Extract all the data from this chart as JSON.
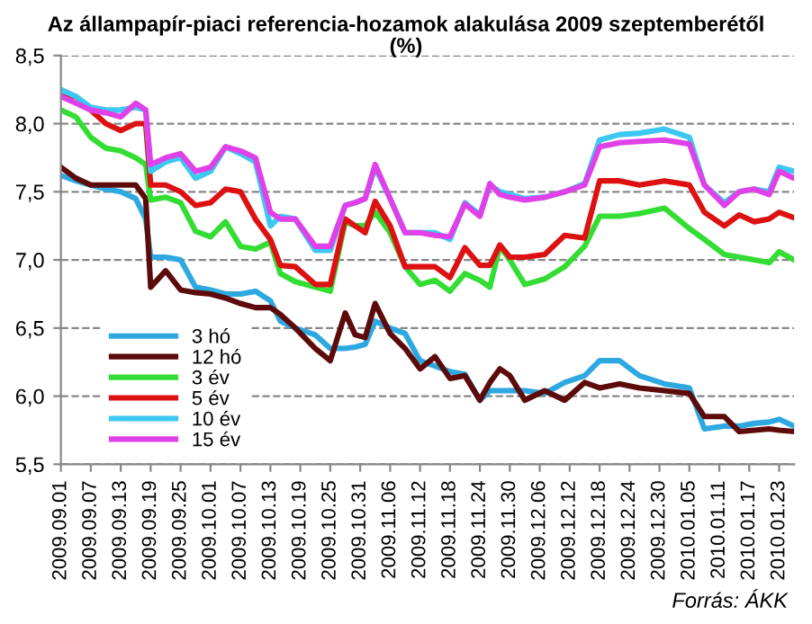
{
  "chart_data": {
    "type": "line",
    "title": "Az állampapír-piaci referencia-hozamok alakulása 2009 szeptemberétől",
    "subtitle": "(%)",
    "annotations": [
      "Forrás: ÁKK"
    ],
    "x": [
      "2009-09-01",
      "2009-09-04",
      "2009-09-07",
      "2009-09-10",
      "2009-09-13",
      "2009-09-16",
      "2009-09-18",
      "2009-09-19",
      "2009-09-22",
      "2009-09-25",
      "2009-09-28",
      "2009-10-01",
      "2009-10-04",
      "2009-10-07",
      "2009-10-10",
      "2009-10-13",
      "2009-10-15",
      "2009-10-18",
      "2009-10-22",
      "2009-10-25",
      "2009-10-28",
      "2009-10-30",
      "2009-11-01",
      "2009-11-03",
      "2009-11-06",
      "2009-11-09",
      "2009-11-12",
      "2009-11-15",
      "2009-11-18",
      "2009-11-21",
      "2009-11-24",
      "2009-11-26",
      "2009-11-28",
      "2009-11-30",
      "2009-12-03",
      "2009-12-07",
      "2009-12-11",
      "2009-12-15",
      "2009-12-18",
      "2009-12-22",
      "2009-12-26",
      "2009-12-31",
      "2010-01-05",
      "2010-01-08",
      "2010-01-12",
      "2010-01-15",
      "2010-01-18",
      "2010-01-21",
      "2010-01-23",
      "2010-01-26"
    ],
    "series": [
      {
        "name": "3 hó",
        "color": "#2ea8e0",
        "values": [
          7.62,
          7.58,
          7.55,
          7.52,
          7.5,
          7.45,
          7.3,
          7.02,
          7.02,
          7.0,
          6.8,
          6.78,
          6.75,
          6.75,
          6.77,
          6.7,
          6.55,
          6.5,
          6.45,
          6.35,
          6.35,
          6.36,
          6.38,
          6.55,
          6.5,
          6.46,
          6.26,
          6.22,
          6.18,
          6.16,
          5.97,
          6.04,
          6.04,
          6.04,
          6.04,
          6.02,
          6.1,
          6.15,
          6.26,
          6.26,
          6.15,
          6.09,
          6.06,
          5.76,
          5.78,
          5.78,
          5.8,
          5.81,
          5.83,
          5.78
        ]
      },
      {
        "name": "12 hó",
        "color": "#5c0a0a",
        "values": [
          7.68,
          7.6,
          7.55,
          7.55,
          7.55,
          7.55,
          7.45,
          6.8,
          6.92,
          6.78,
          6.76,
          6.75,
          6.72,
          6.68,
          6.65,
          6.65,
          6.6,
          6.5,
          6.35,
          6.26,
          6.61,
          6.45,
          6.43,
          6.68,
          6.46,
          6.35,
          6.2,
          6.29,
          6.13,
          6.15,
          5.97,
          6.1,
          6.2,
          6.15,
          5.97,
          6.04,
          5.97,
          6.1,
          6.06,
          6.09,
          6.06,
          6.04,
          6.02,
          5.85,
          5.85,
          5.74,
          5.75,
          5.76,
          5.75,
          5.74
        ]
      },
      {
        "name": "3 év",
        "color": "#33dd33",
        "values": [
          8.1,
          8.05,
          7.9,
          7.82,
          7.8,
          7.75,
          7.7,
          7.44,
          7.46,
          7.42,
          7.21,
          7.17,
          7.28,
          7.1,
          7.08,
          7.13,
          6.9,
          6.84,
          6.8,
          6.77,
          7.28,
          7.25,
          7.25,
          7.35,
          7.2,
          6.95,
          6.82,
          6.85,
          6.77,
          6.9,
          6.85,
          6.8,
          7.1,
          7.0,
          6.82,
          6.86,
          6.95,
          7.1,
          7.32,
          7.32,
          7.34,
          7.38,
          7.23,
          7.15,
          7.04,
          7.02,
          7.0,
          6.98,
          7.06,
          7.0
        ]
      },
      {
        "name": "5 év",
        "color": "#dd1111",
        "values": [
          8.2,
          8.2,
          8.1,
          8.0,
          7.95,
          8.0,
          8.0,
          7.55,
          7.55,
          7.5,
          7.4,
          7.42,
          7.52,
          7.5,
          7.3,
          7.15,
          6.96,
          6.95,
          6.82,
          6.82,
          7.3,
          7.25,
          7.2,
          7.43,
          7.25,
          6.95,
          6.95,
          6.95,
          6.87,
          7.09,
          6.96,
          6.96,
          7.11,
          7.02,
          7.02,
          7.04,
          7.18,
          7.16,
          7.58,
          7.58,
          7.55,
          7.58,
          7.55,
          7.35,
          7.25,
          7.33,
          7.28,
          7.3,
          7.35,
          7.31
        ]
      },
      {
        "name": "10 év",
        "color": "#3cc8f0",
        "values": [
          8.25,
          8.2,
          8.12,
          8.1,
          8.1,
          8.12,
          8.1,
          7.65,
          7.72,
          7.75,
          7.6,
          7.65,
          7.83,
          7.78,
          7.72,
          7.25,
          7.32,
          7.3,
          7.07,
          7.07,
          7.4,
          7.42,
          7.45,
          7.68,
          7.45,
          7.2,
          7.2,
          7.2,
          7.15,
          7.42,
          7.33,
          7.55,
          7.5,
          7.48,
          7.45,
          7.46,
          7.5,
          7.56,
          7.88,
          7.92,
          7.93,
          7.96,
          7.9,
          7.55,
          7.42,
          7.5,
          7.52,
          7.5,
          7.68,
          7.65
        ]
      },
      {
        "name": "15 év",
        "color": "#e040e8",
        "values": [
          8.2,
          8.15,
          8.1,
          8.08,
          8.05,
          8.15,
          8.1,
          7.7,
          7.75,
          7.78,
          7.65,
          7.68,
          7.83,
          7.8,
          7.75,
          7.35,
          7.3,
          7.3,
          7.1,
          7.1,
          7.4,
          7.42,
          7.45,
          7.7,
          7.45,
          7.2,
          7.2,
          7.18,
          7.17,
          7.41,
          7.32,
          7.56,
          7.48,
          7.46,
          7.44,
          7.46,
          7.5,
          7.55,
          7.83,
          7.86,
          7.87,
          7.88,
          7.85,
          7.55,
          7.4,
          7.5,
          7.52,
          7.48,
          7.65,
          7.6
        ]
      }
    ],
    "xlim": [
      "2009-09-01",
      "2010-01-26"
    ],
    "xticks": [
      {
        "value": "2009-09-01",
        "label": "2009.09.01"
      },
      {
        "value": "2009-09-07",
        "label": "2009.09.07"
      },
      {
        "value": "2009-09-13",
        "label": "2009.09.13"
      },
      {
        "value": "2009-09-19",
        "label": "2009.09.19"
      },
      {
        "value": "2009-09-25",
        "label": "2009.09.25"
      },
      {
        "value": "2009-10-01",
        "label": "2009.10.01"
      },
      {
        "value": "2009-10-07",
        "label": "2009.10.07"
      },
      {
        "value": "2009-10-13",
        "label": "2009.10.13"
      },
      {
        "value": "2009-10-19",
        "label": "2009.10.19"
      },
      {
        "value": "2009-10-25",
        "label": "2009.10.25"
      },
      {
        "value": "2009-10-31",
        "label": "2009.10.31"
      },
      {
        "value": "2009-11-06",
        "label": "2009.11.06"
      },
      {
        "value": "2009-11-12",
        "label": "2009.11.12"
      },
      {
        "value": "2009-11-18",
        "label": "2009.11.18"
      },
      {
        "value": "2009-11-24",
        "label": "2009.11.24"
      },
      {
        "value": "2009-11-30",
        "label": "2009.11.30"
      },
      {
        "value": "2009-12-06",
        "label": "2009.12.06"
      },
      {
        "value": "2009-12-12",
        "label": "2009.12.12"
      },
      {
        "value": "2009-12-18",
        "label": "2009.12.18"
      },
      {
        "value": "2009-12-24",
        "label": "2009.12.24"
      },
      {
        "value": "2009-12-30",
        "label": "2009.12.30"
      },
      {
        "value": "2010-01-05",
        "label": "2010.01.05"
      },
      {
        "value": "2010-01-11",
        "label": "2010.01.11"
      },
      {
        "value": "2010-01-17",
        "label": "2010.01.17"
      },
      {
        "value": "2010-01-23",
        "label": "2010.01.23"
      }
    ],
    "ylim": [
      5.5,
      8.5
    ],
    "yticks": [
      {
        "value": 5.5,
        "label": "5,5"
      },
      {
        "value": 6.0,
        "label": "6,0"
      },
      {
        "value": 6.5,
        "label": "6,5"
      },
      {
        "value": 7.0,
        "label": "7,0"
      },
      {
        "value": 7.5,
        "label": "7,5"
      },
      {
        "value": 8.0,
        "label": "8,0"
      },
      {
        "value": 8.5,
        "label": "8,5"
      }
    ],
    "grid": "y",
    "legend": "bottom left",
    "marker": "none",
    "line_style": "solid"
  }
}
